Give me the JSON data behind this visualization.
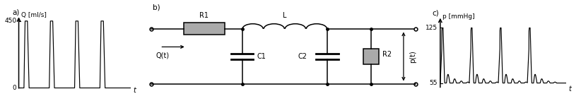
{
  "fig_width": 8.22,
  "fig_height": 1.43,
  "dpi": 100,
  "panel_a": {
    "label": "a)",
    "ylabel": "Q [ml/s]",
    "xlabel": "t",
    "ymin": 0,
    "ymax": 450,
    "yticks": [
      0,
      450
    ]
  },
  "panel_b": {
    "label": "b)",
    "R1_label": "R1",
    "L_label": "L",
    "C1_label": "C1",
    "C2_label": "C2",
    "R2_label": "R2",
    "Qt_label": "Q(t)",
    "pt_label": "p(t)"
  },
  "panel_c": {
    "label": "c)",
    "ylabel": "p [mmHg]",
    "xlabel": "t",
    "ymin": 55,
    "ymax": 125,
    "yticks": [
      55,
      125
    ]
  },
  "bg_color": "#ffffff",
  "line_color": "#000000",
  "component_color": "#aaaaaa"
}
